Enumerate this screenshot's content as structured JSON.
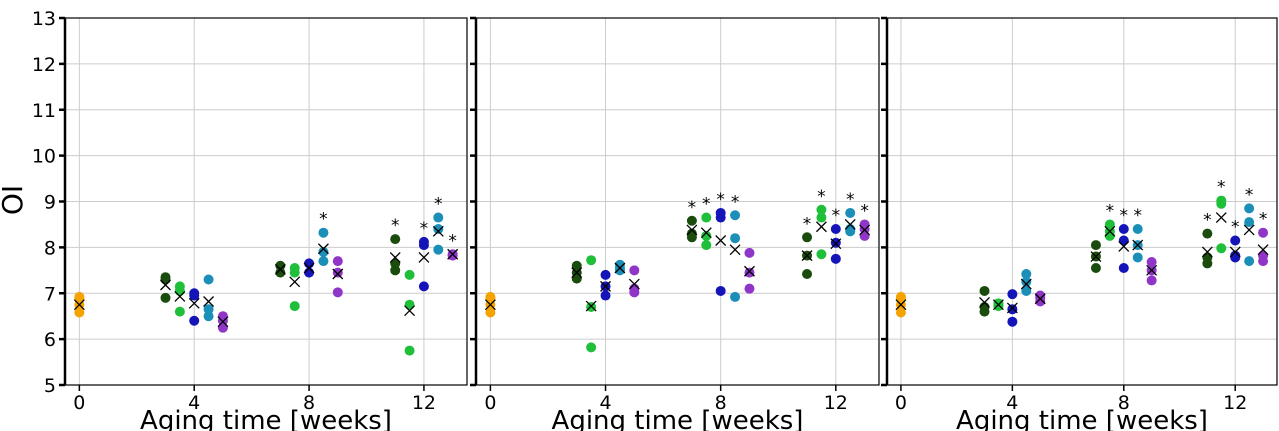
{
  "chart_data": {
    "type": "scatter",
    "ylabel": "OI",
    "ylim": [
      5,
      13
    ],
    "yticks": [
      "5",
      "6",
      "7",
      "8",
      "9",
      "10",
      "11",
      "12",
      "13"
    ],
    "xlim": [
      -0.5,
      13.5
    ],
    "xticks": [
      "0",
      "4",
      "8",
      "12"
    ],
    "grid": true,
    "colors": {
      "time0": "#f5a300",
      "series": [
        "#1a4d0d",
        "#1fbf3a",
        "#1414b8",
        "#1b8fb8",
        "#8f35c7"
      ],
      "mean_marker": "#000000"
    },
    "panels": [
      {
        "xlabel": "Aging time [weeks]",
        "groups": [
          {
            "x": 0,
            "values": [
              6.58,
              6.75,
              6.88,
              6.92
            ],
            "series": [
              -1,
              -1,
              -1,
              -1
            ],
            "mean": 6.75
          },
          {
            "x": 3.0,
            "values": [
              6.9,
              7.3,
              7.35
            ],
            "series": [
              0,
              0,
              0
            ],
            "mean": 7.18
          },
          {
            "x": 3.5,
            "values": [
              6.6,
              7.05,
              7.15
            ],
            "series": [
              1,
              1,
              1
            ],
            "mean": 6.93
          },
          {
            "x": 4.0,
            "values": [
              6.4,
              6.95,
              7.0
            ],
            "series": [
              2,
              2,
              2
            ],
            "mean": 6.78
          },
          {
            "x": 4.5,
            "values": [
              6.5,
              6.65,
              7.3
            ],
            "series": [
              3,
              3,
              3
            ],
            "mean": 6.82
          },
          {
            "x": 5.0,
            "values": [
              6.25,
              6.4,
              6.5
            ],
            "series": [
              4,
              4,
              4
            ],
            "mean": 6.38
          },
          {
            "x": 7.0,
            "values": [
              7.45,
              7.6
            ],
            "series": [
              0,
              0
            ],
            "mean": 7.52
          },
          {
            "x": 7.5,
            "values": [
              6.72,
              7.45,
              7.55
            ],
            "series": [
              1,
              1,
              1
            ],
            "mean": 7.25
          },
          {
            "x": 8.0,
            "values": [
              7.45,
              7.65
            ],
            "series": [
              2,
              2
            ],
            "mean": 7.55
          },
          {
            "x": 8.5,
            "values": [
              7.7,
              7.9,
              8.32
            ],
            "series": [
              3,
              3,
              3
            ],
            "mean": 7.97,
            "sig": true
          },
          {
            "x": 9.0,
            "values": [
              7.02,
              7.45,
              7.7
            ],
            "series": [
              4,
              4,
              4
            ],
            "mean": 7.42
          },
          {
            "x": 11.0,
            "values": [
              7.5,
              7.65,
              8.18
            ],
            "series": [
              0,
              0,
              0
            ],
            "mean": 7.78,
            "sig": true
          },
          {
            "x": 11.5,
            "values": [
              5.75,
              6.75,
              7.4
            ],
            "series": [
              1,
              1,
              1
            ],
            "mean": 6.62
          },
          {
            "x": 12.0,
            "values": [
              7.15,
              8.05,
              8.12
            ],
            "series": [
              2,
              2,
              2
            ],
            "mean": 7.78,
            "sig": true
          },
          {
            "x": 12.5,
            "values": [
              7.95,
              8.4,
              8.65
            ],
            "series": [
              3,
              3,
              3
            ],
            "mean": 8.35,
            "sig": true
          },
          {
            "x": 13.0,
            "values": [
              7.82,
              7.85
            ],
            "series": [
              4,
              4
            ],
            "mean": 7.85,
            "sig": true
          }
        ]
      },
      {
        "xlabel": "Aging time [weeks]",
        "groups": [
          {
            "x": 0,
            "values": [
              6.58,
              6.75,
              6.88,
              6.92
            ],
            "series": [
              -1,
              -1,
              -1,
              -1
            ],
            "mean": 6.75
          },
          {
            "x": 3.0,
            "values": [
              7.32,
              7.45,
              7.6
            ],
            "series": [
              0,
              0,
              0
            ],
            "mean": 7.45
          },
          {
            "x": 3.5,
            "values": [
              5.82,
              6.7,
              7.72
            ],
            "series": [
              1,
              1,
              1
            ],
            "mean": 6.72
          },
          {
            "x": 4.0,
            "values": [
              6.95,
              7.15,
              7.4
            ],
            "series": [
              2,
              2,
              2
            ],
            "mean": 7.15
          },
          {
            "x": 4.5,
            "values": [
              7.5,
              7.55,
              7.62
            ],
            "series": [
              3,
              3,
              3
            ],
            "mean": 7.55
          },
          {
            "x": 5.0,
            "values": [
              7.02,
              7.1,
              7.5
            ],
            "series": [
              4,
              4,
              4
            ],
            "mean": 7.2
          },
          {
            "x": 7.0,
            "values": [
              8.22,
              8.3,
              8.58
            ],
            "series": [
              0,
              0,
              0
            ],
            "mean": 8.38,
            "sig": true
          },
          {
            "x": 7.5,
            "values": [
              8.05,
              8.25,
              8.65
            ],
            "series": [
              1,
              1,
              1
            ],
            "mean": 8.32,
            "sig": true
          },
          {
            "x": 8.0,
            "values": [
              7.05,
              8.65,
              8.75
            ],
            "series": [
              2,
              2,
              2
            ],
            "mean": 8.15,
            "sig": true
          },
          {
            "x": 8.5,
            "values": [
              6.92,
              8.2,
              8.7
            ],
            "series": [
              3,
              3,
              3
            ],
            "mean": 7.95,
            "sig": true
          },
          {
            "x": 9.0,
            "values": [
              7.1,
              7.45,
              7.88
            ],
            "series": [
              4,
              4,
              4
            ],
            "mean": 7.48
          },
          {
            "x": 11.0,
            "values": [
              7.42,
              7.82,
              8.22
            ],
            "series": [
              0,
              0,
              0
            ],
            "mean": 7.82,
            "sig": true
          },
          {
            "x": 11.5,
            "values": [
              7.85,
              8.65,
              8.82
            ],
            "series": [
              1,
              1,
              1
            ],
            "mean": 8.45,
            "sig": true
          },
          {
            "x": 12.0,
            "values": [
              7.75,
              8.1,
              8.4
            ],
            "series": [
              2,
              2,
              2
            ],
            "mean": 8.08,
            "sig": true
          },
          {
            "x": 12.5,
            "values": [
              8.35,
              8.4,
              8.75
            ],
            "series": [
              3,
              3,
              3
            ],
            "mean": 8.5,
            "sig": true
          },
          {
            "x": 13.0,
            "values": [
              8.25,
              8.4,
              8.5
            ],
            "series": [
              4,
              4,
              4
            ],
            "mean": 8.38,
            "sig": true
          }
        ]
      },
      {
        "xlabel": "Aging time [weeks]",
        "groups": [
          {
            "x": 0,
            "values": [
              6.58,
              6.75,
              6.88,
              6.92
            ],
            "series": [
              -1,
              -1,
              -1,
              -1
            ],
            "mean": 6.75
          },
          {
            "x": 3.0,
            "values": [
              6.6,
              6.7,
              7.05
            ],
            "series": [
              0,
              0,
              0
            ],
            "mean": 6.8
          },
          {
            "x": 3.5,
            "values": [
              6.72,
              6.75,
              6.78
            ],
            "series": [
              1,
              1,
              1
            ],
            "mean": 6.75
          },
          {
            "x": 4.0,
            "values": [
              6.38,
              6.65,
              6.98
            ],
            "series": [
              2,
              2,
              2
            ],
            "mean": 6.68
          },
          {
            "x": 4.5,
            "values": [
              7.05,
              7.25,
              7.42
            ],
            "series": [
              3,
              3,
              3
            ],
            "mean": 7.2
          },
          {
            "x": 5.0,
            "values": [
              6.82,
              6.9,
              6.95
            ],
            "series": [
              4,
              4,
              4
            ],
            "mean": 6.88
          },
          {
            "x": 7.0,
            "values": [
              7.55,
              7.8,
              8.05
            ],
            "series": [
              0,
              0,
              0
            ],
            "mean": 7.8
          },
          {
            "x": 7.5,
            "values": [
              8.25,
              8.35,
              8.5
            ],
            "series": [
              1,
              1,
              1
            ],
            "mean": 8.35,
            "sig": true
          },
          {
            "x": 8.0,
            "values": [
              7.55,
              8.15,
              8.4
            ],
            "series": [
              2,
              2,
              2
            ],
            "mean": 8.02,
            "sig": true
          },
          {
            "x": 8.5,
            "values": [
              7.78,
              8.05,
              8.4
            ],
            "series": [
              3,
              3,
              3
            ],
            "mean": 8.05,
            "sig": true
          },
          {
            "x": 9.0,
            "values": [
              7.28,
              7.5,
              7.68
            ],
            "series": [
              4,
              4,
              4
            ],
            "mean": 7.5
          },
          {
            "x": 11.0,
            "values": [
              7.65,
              7.78,
              8.3
            ],
            "series": [
              0,
              0,
              0
            ],
            "mean": 7.9,
            "sig": true
          },
          {
            "x": 11.5,
            "values": [
              7.98,
              8.95,
              9.02
            ],
            "series": [
              1,
              1,
              1
            ],
            "mean": 8.65,
            "sig": true
          },
          {
            "x": 12.0,
            "values": [
              7.78,
              7.82,
              8.15
            ],
            "series": [
              2,
              2,
              2
            ],
            "mean": 7.9,
            "sig": true
          },
          {
            "x": 12.5,
            "values": [
              7.7,
              8.55,
              8.85
            ],
            "series": [
              3,
              3,
              3
            ],
            "mean": 8.38,
            "sig": true
          },
          {
            "x": 13.0,
            "values": [
              7.7,
              7.82,
              8.32
            ],
            "series": [
              4,
              4,
              4
            ],
            "mean": 7.95,
            "sig": true
          }
        ]
      }
    ]
  }
}
